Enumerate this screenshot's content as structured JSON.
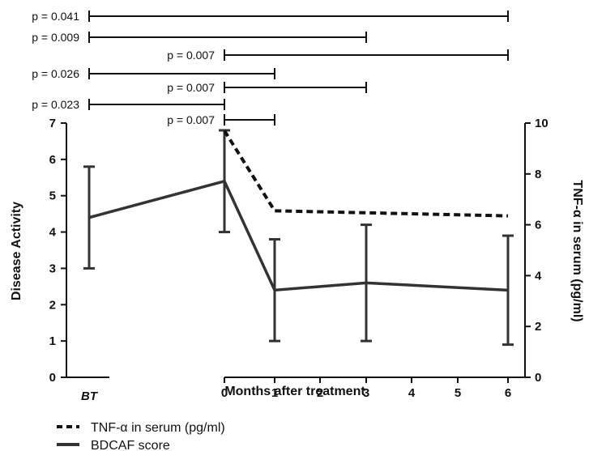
{
  "chart_data": {
    "type": "line",
    "xlabel": "Months after treatment",
    "ylabel_left": "Disease Activity",
    "ylabel_right": "TNF-α in serum  (pg/ml)",
    "ylim_left": [
      0,
      7
    ],
    "ylim_right": [
      0,
      10
    ],
    "yticks_left": [
      0,
      1,
      2,
      3,
      4,
      5,
      6,
      7
    ],
    "yticks_right": [
      0,
      2,
      4,
      6,
      8,
      10
    ],
    "x_tick_labels": [
      "BT",
      "0",
      "1",
      "2",
      "3",
      "4",
      "5",
      "6"
    ],
    "series": [
      {
        "name": "BDCAF score",
        "axis": "left",
        "style": "solid",
        "color": "#333333",
        "x": [
          "BT",
          "0",
          "1",
          "3",
          "6"
        ],
        "values": [
          4.4,
          5.4,
          2.4,
          2.6,
          2.4
        ],
        "error_low": [
          3.0,
          4.0,
          1.0,
          1.0,
          0.9
        ],
        "error_high": [
          5.8,
          6.8,
          3.8,
          4.2,
          3.9
        ]
      },
      {
        "name": "TNF-α in serum (pg/ml)",
        "axis": "right",
        "style": "dashed",
        "color": "#111111",
        "x": [
          "0",
          "1",
          "6"
        ],
        "values": [
          9.7,
          6.55,
          6.35
        ]
      }
    ],
    "comparisons": [
      {
        "label": "p = 0.041",
        "from": "BT",
        "to": "6"
      },
      {
        "label": "p = 0.009",
        "from": "BT",
        "to": "3"
      },
      {
        "label": "p = 0.007",
        "from": "0",
        "to": "6"
      },
      {
        "label": "p = 0.026",
        "from": "BT",
        "to": "1"
      },
      {
        "label": "p = 0.007",
        "from": "0",
        "to": "3"
      },
      {
        "label": "p = 0.023",
        "from": "BT",
        "to": "0"
      },
      {
        "label": "p = 0.007",
        "from": "0",
        "to": "1"
      }
    ],
    "legend": {
      "placement": "bottom-left",
      "entries": [
        "TNF-α in serum (pg/ml)",
        "BDCAF score"
      ]
    }
  }
}
